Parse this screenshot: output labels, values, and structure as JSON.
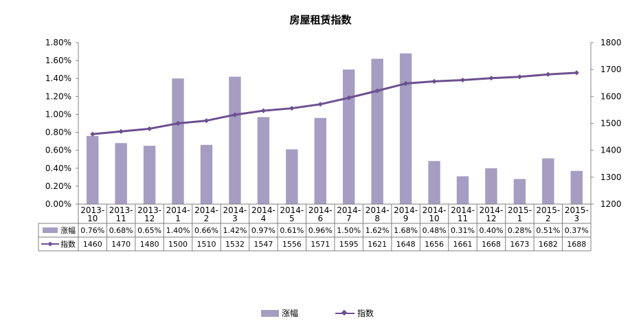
{
  "chart_data": {
    "type": "bar",
    "title": "房屋租赁指数",
    "categories": [
      "2013-10",
      "2013-11",
      "2013-12",
      "2014-1",
      "2014-2",
      "2014-3",
      "2014-4",
      "2014-5",
      "2014-6",
      "2014-7",
      "2014-8",
      "2014-9",
      "2014-10",
      "2014-11",
      "2014-12",
      "2015-1",
      "2015-2",
      "2015-3"
    ],
    "category_lines": [
      [
        "2013-",
        "10"
      ],
      [
        "2013-",
        "11"
      ],
      [
        "2013-",
        "12"
      ],
      [
        "2014-",
        "1"
      ],
      [
        "2014-",
        "2"
      ],
      [
        "2014-",
        "3"
      ],
      [
        "2014-",
        "4"
      ],
      [
        "2014-",
        "5"
      ],
      [
        "2014-",
        "6"
      ],
      [
        "2014-",
        "7"
      ],
      [
        "2014-",
        "8"
      ],
      [
        "2014-",
        "9"
      ],
      [
        "2014-",
        "10"
      ],
      [
        "2014-",
        "11"
      ],
      [
        "2014-",
        "12"
      ],
      [
        "2015-",
        "1"
      ],
      [
        "2015-",
        "2"
      ],
      [
        "2015-",
        "3"
      ]
    ],
    "series": [
      {
        "name": "涨幅",
        "type": "bar",
        "axis": "left",
        "color": "#a59dc2",
        "values": [
          0.76,
          0.68,
          0.65,
          1.4,
          0.66,
          1.42,
          0.97,
          0.61,
          0.96,
          1.5,
          1.62,
          1.68,
          0.48,
          0.31,
          0.4,
          0.28,
          0.51,
          0.37
        ],
        "labels": [
          "0.76%",
          "0.68%",
          "0.65%",
          "1.40%",
          "0.66%",
          "1.42%",
          "0.97%",
          "0.61%",
          "0.96%",
          "1.50%",
          "1.62%",
          "1.68%",
          "0.48%",
          "0.31%",
          "0.40%",
          "0.28%",
          "0.51%",
          "0.37%"
        ]
      },
      {
        "name": "指数",
        "type": "line",
        "axis": "right",
        "color": "#6c4f8f",
        "values": [
          1460,
          1470,
          1480,
          1500,
          1510,
          1532,
          1547,
          1556,
          1571,
          1595,
          1621,
          1648,
          1656,
          1661,
          1668,
          1673,
          1682,
          1688
        ],
        "labels": [
          "1460",
          "1470",
          "1480",
          "1500",
          "1510",
          "1532",
          "1547",
          "1556",
          "1571",
          "1595",
          "1621",
          "1648",
          "1656",
          "1661",
          "1668",
          "1673",
          "1682",
          "1688"
        ]
      }
    ],
    "y_left": {
      "min": 0,
      "max": 1.8,
      "step": 0.2,
      "tick_labels": [
        "0.00%",
        "0.20%",
        "0.40%",
        "0.60%",
        "0.80%",
        "1.00%",
        "1.20%",
        "1.40%",
        "1.60%",
        "1.80%"
      ]
    },
    "y_right": {
      "min": 1200,
      "max": 1800,
      "step": 100,
      "tick_labels": [
        "1200",
        "1300",
        "1400",
        "1500",
        "1600",
        "1700",
        "1800"
      ]
    },
    "grid": false,
    "data_table": true,
    "legend_position": "bottom"
  }
}
